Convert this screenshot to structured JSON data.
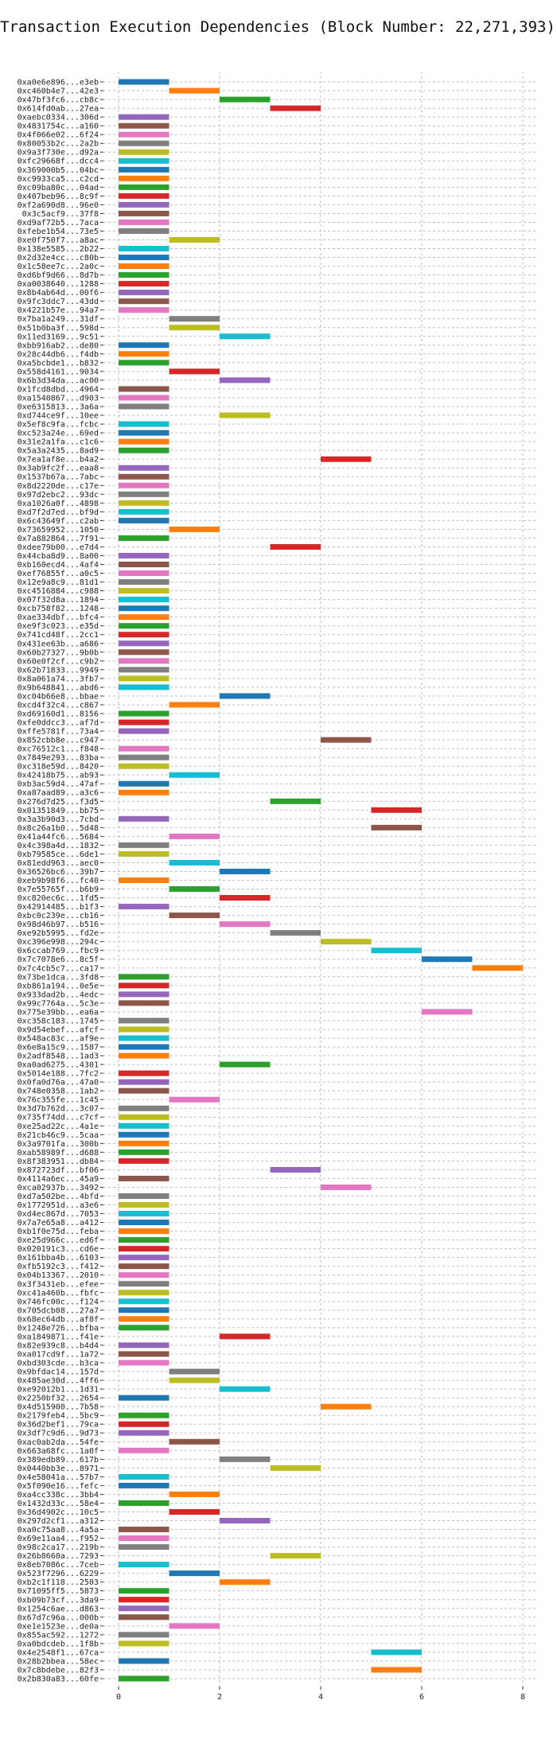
{
  "chart_data": {
    "type": "bar",
    "subtype": "horizontal-gantt",
    "title": "Transaction Execution Dependencies (Block Number: 22,271,393)",
    "xlabel": "",
    "ylabel": "",
    "xlim": [
      -0.3,
      8.3
    ],
    "xticks": [
      0,
      2,
      4,
      6,
      8
    ],
    "grid": true,
    "palette": [
      "#1f77b4",
      "#ff7f0e",
      "#2ca02c",
      "#d62728",
      "#9467bd",
      "#8c564b",
      "#e377c2",
      "#7f7f7f",
      "#bcbd22",
      "#17becf"
    ],
    "rows": [
      {
        "label": "0xa0e6e896...e3eb",
        "start": 0
      },
      {
        "label": "0xc460b4e7...42e3",
        "start": 1
      },
      {
        "label": "0x47bf3fc6...cb8c",
        "start": 2
      },
      {
        "label": "0x614fd0ab...27ea",
        "start": 3
      },
      {
        "label": "0xaebc0334...306d",
        "start": 0
      },
      {
        "label": "0x4831754c...a160",
        "start": 0
      },
      {
        "label": "0x4f066e02...6f24",
        "start": 0
      },
      {
        "label": "0x80053b2c...2a2b",
        "start": 0
      },
      {
        "label": "0x9a3f730e...d92a",
        "start": 0
      },
      {
        "label": "0xfc29668f...dcc4",
        "start": 0
      },
      {
        "label": "0x369000b5...04bc",
        "start": 0
      },
      {
        "label": "0xc9933ca5...c2cd",
        "start": 0
      },
      {
        "label": "0xc09ba80c...04ad",
        "start": 0
      },
      {
        "label": "0x407beb96...8c9f",
        "start": 0
      },
      {
        "label": "0xf2a690d8...96e0",
        "start": 0
      },
      {
        "label": "0x3c5acf9...37f8",
        "start": 0
      },
      {
        "label": "0xd9af72b5...7aca",
        "start": 0
      },
      {
        "label": "0xfebe1b54...73e5",
        "start": 0
      },
      {
        "label": "0xe0f750f7...a8ac",
        "start": 1
      },
      {
        "label": "0x138e5585...2b22",
        "start": 0
      },
      {
        "label": "0x2d32e4cc...c80b",
        "start": 0
      },
      {
        "label": "0x1c58ee7c...2a0c",
        "start": 0
      },
      {
        "label": "0xd6bf9d66...8d7b",
        "start": 0
      },
      {
        "label": "0xa0038640...1288",
        "start": 0
      },
      {
        "label": "0x8b4ab64d...00f6",
        "start": 0
      },
      {
        "label": "0x9fc3ddc7...43dd",
        "start": 0
      },
      {
        "label": "0x4221b57e...94a7",
        "start": 0
      },
      {
        "label": "0x7ba1a249...31df",
        "start": 1
      },
      {
        "label": "0x51b0ba3f...598d",
        "start": 1
      },
      {
        "label": "0x11ed3169...9c51",
        "start": 2
      },
      {
        "label": "0xbb916ab2...de80",
        "start": 0
      },
      {
        "label": "0x28c44db6...f4db",
        "start": 0
      },
      {
        "label": "0xa5bcbde1...b832",
        "start": 0
      },
      {
        "label": "0x558d4161...9034",
        "start": 1
      },
      {
        "label": "0x6b3d34da...ac00",
        "start": 2
      },
      {
        "label": "0x1fcd8dbd...4964",
        "start": 0
      },
      {
        "label": "0xa1540867...d903",
        "start": 0
      },
      {
        "label": "0xe6315813...3a6a",
        "start": 0
      },
      {
        "label": "0xd744ce9f...10ee",
        "start": 2
      },
      {
        "label": "0x5ef8c9fa...fcbc",
        "start": 0
      },
      {
        "label": "0xc523a24e...69ed",
        "start": 0
      },
      {
        "label": "0x31e2a1fa...c1c6",
        "start": 0
      },
      {
        "label": "0x5a3a2435...8ad9",
        "start": 0
      },
      {
        "label": "0x7ea1af8e...b4a2",
        "start": 4
      },
      {
        "label": "0x3ab9fc2f...eaa8",
        "start": 0
      },
      {
        "label": "0x1537b67a...7abc",
        "start": 0
      },
      {
        "label": "0x8d2220de...c17e",
        "start": 0
      },
      {
        "label": "0x97d2ebc2...93dc",
        "start": 0
      },
      {
        "label": "0xa1026a0f...4898",
        "start": 0
      },
      {
        "label": "0xd7f2d7ed...bf9d",
        "start": 0
      },
      {
        "label": "0x6c43649f...c2ab",
        "start": 0
      },
      {
        "label": "0x73659952...1050",
        "start": 1
      },
      {
        "label": "0x7a882864...7f91",
        "start": 0
      },
      {
        "label": "0xdee79b00...e7d4",
        "start": 3
      },
      {
        "label": "0x44cba8d9...8a00",
        "start": 0
      },
      {
        "label": "0xb160ecd4...4af4",
        "start": 0
      },
      {
        "label": "0xef76855f...a0c5",
        "start": 0
      },
      {
        "label": "0x12e9a8c9...81d1",
        "start": 0
      },
      {
        "label": "0xc4516884...c988",
        "start": 0
      },
      {
        "label": "0x07f32d8a...1894",
        "start": 0
      },
      {
        "label": "0xcb758f82...1248",
        "start": 0
      },
      {
        "label": "0xae334dbf...bfc4",
        "start": 0
      },
      {
        "label": "0xe9f3c023...e35d",
        "start": 0
      },
      {
        "label": "0x741cd48f...2cc1",
        "start": 0
      },
      {
        "label": "0x431ee63b...a686",
        "start": 0
      },
      {
        "label": "0x60b27327...9b0b",
        "start": 0
      },
      {
        "label": "0x60e0f2cf...c9b2",
        "start": 0
      },
      {
        "label": "0x62b71833...9949",
        "start": 0
      },
      {
        "label": "0x8a061a74...3fb7",
        "start": 0
      },
      {
        "label": "0x9b648841...abd6",
        "start": 0
      },
      {
        "label": "0xc04b66e8...bbae",
        "start": 2
      },
      {
        "label": "0xcd4f32c4...c867",
        "start": 1
      },
      {
        "label": "0xd69160d1...8156",
        "start": 0
      },
      {
        "label": "0xfe0ddcc3...af7d",
        "start": 0
      },
      {
        "label": "0xffe5781f...73a4",
        "start": 0
      },
      {
        "label": "0x852cbb8e...c947",
        "start": 4
      },
      {
        "label": "0xc76512c1...f848",
        "start": 0
      },
      {
        "label": "0x7849e293...83ba",
        "start": 0
      },
      {
        "label": "0xc318e59d...8420",
        "start": 0
      },
      {
        "label": "0x42418b75...ab93",
        "start": 1
      },
      {
        "label": "0xb3ac59d4...47af",
        "start": 0
      },
      {
        "label": "0xa87aad89...a3c6",
        "start": 0
      },
      {
        "label": "0x276d7d25...f3d5",
        "start": 3
      },
      {
        "label": "0x01351849...bb75",
        "start": 5
      },
      {
        "label": "0x3a3b90d3...7cbd",
        "start": 0
      },
      {
        "label": "0x8c26a1b0...5d48",
        "start": 5
      },
      {
        "label": "0x41a44fc6...5684",
        "start": 1
      },
      {
        "label": "0x4c398a4d...1832",
        "start": 0
      },
      {
        "label": "0xb79585ce...6de1",
        "start": 0
      },
      {
        "label": "0x81edd963...aec0",
        "start": 1
      },
      {
        "label": "0x36526bc6...39b7",
        "start": 2
      },
      {
        "label": "0xeb9b98f6...fc40",
        "start": 0
      },
      {
        "label": "0x7e55765f...b6b9",
        "start": 1
      },
      {
        "label": "0xc820ec6c...1fd5",
        "start": 2
      },
      {
        "label": "0x42914485...b1f3",
        "start": 0
      },
      {
        "label": "0xbc0c239e...cb16",
        "start": 1
      },
      {
        "label": "0x98d46b97...b516",
        "start": 2
      },
      {
        "label": "0xe92b5995...fd2e",
        "start": 3
      },
      {
        "label": "0xc396e998...294c",
        "start": 4
      },
      {
        "label": "0x6ccab769...fbc9",
        "start": 5
      },
      {
        "label": "0x7c7078e6...8c5f",
        "start": 6
      },
      {
        "label": "0x7c4cb5c7...ca17",
        "start": 7
      },
      {
        "label": "0x73be1dca...3fd8",
        "start": 0
      },
      {
        "label": "0xb861a194...0e5e",
        "start": 0
      },
      {
        "label": "0x933dad2b...4edc",
        "start": 0
      },
      {
        "label": "0x99c7764a...5c3e",
        "start": 0
      },
      {
        "label": "0x775e39bb...ea6a",
        "start": 6
      },
      {
        "label": "0xc358c183...1745",
        "start": 0
      },
      {
        "label": "0x9d54ebef...afcf",
        "start": 0
      },
      {
        "label": "0x548ac83c...af9e",
        "start": 0
      },
      {
        "label": "0x6e8a15c9...1587",
        "start": 0
      },
      {
        "label": "0x2adf8548...1ad3",
        "start": 0
      },
      {
        "label": "0xa0ad6275...4301",
        "start": 2
      },
      {
        "label": "0x5014e188...7fc2",
        "start": 0
      },
      {
        "label": "0x0fa0d76a...47a0",
        "start": 0
      },
      {
        "label": "0x748e0358...1ab2",
        "start": 0
      },
      {
        "label": "0x76c355fe...1c45",
        "start": 1
      },
      {
        "label": "0x3d7b762d...3c07",
        "start": 0
      },
      {
        "label": "0x735f74dd...c7cf",
        "start": 0
      },
      {
        "label": "0xe25ad22c...4a1e",
        "start": 0
      },
      {
        "label": "0x21cb46c9...5caa",
        "start": 0
      },
      {
        "label": "0x3a9701fa...300b",
        "start": 0
      },
      {
        "label": "0xab58989f...d688",
        "start": 0
      },
      {
        "label": "0x8f383951...db84",
        "start": 0
      },
      {
        "label": "0x872723df...bf06",
        "start": 3
      },
      {
        "label": "0x4114a6ec...45a9",
        "start": 0
      },
      {
        "label": "0xca02937b...3492",
        "start": 4
      },
      {
        "label": "0xd7a502be...4bfd",
        "start": 0
      },
      {
        "label": "0x1772951d...a3e6",
        "start": 0
      },
      {
        "label": "0xd4ec867d...7053",
        "start": 0
      },
      {
        "label": "0x7a7e65a8...a412",
        "start": 0
      },
      {
        "label": "0xb1f0e75d...feba",
        "start": 0
      },
      {
        "label": "0xe25d966c...ed6f",
        "start": 0
      },
      {
        "label": "0x020191c3...cd6e",
        "start": 0
      },
      {
        "label": "0x161bba4b...6103",
        "start": 0
      },
      {
        "label": "0xfb5192c3...f412",
        "start": 0
      },
      {
        "label": "0x04b13367...2010",
        "start": 0
      },
      {
        "label": "0x3f3431eb...efee",
        "start": 0
      },
      {
        "label": "0xc41a460b...fbfc",
        "start": 0
      },
      {
        "label": "0x746fc00c...f124",
        "start": 0
      },
      {
        "label": "0x705dcb08...27a7",
        "start": 0
      },
      {
        "label": "0x68ec64db...af8f",
        "start": 0
      },
      {
        "label": "0x1248e726...bfba",
        "start": 0
      },
      {
        "label": "0xa1849871...f41e",
        "start": 2
      },
      {
        "label": "0x82e939c8...b4d4",
        "start": 0
      },
      {
        "label": "0xa017cd9f...1a72",
        "start": 0
      },
      {
        "label": "0xbd303cde...b3ca",
        "start": 0
      },
      {
        "label": "0x9bfdac14...157d",
        "start": 1
      },
      {
        "label": "0x485ae30d...4ff6",
        "start": 1
      },
      {
        "label": "0xe92012b1...1d31",
        "start": 2
      },
      {
        "label": "0x2250bf32...2654",
        "start": 0
      },
      {
        "label": "0x4d515900...7b58",
        "start": 4
      },
      {
        "label": "0x2179feb4...5bc9",
        "start": 0
      },
      {
        "label": "0x36d2bef1...79ca",
        "start": 0
      },
      {
        "label": "0x3df7c9d6...9d73",
        "start": 0
      },
      {
        "label": "0xac0ab2da...54fe",
        "start": 1
      },
      {
        "label": "0x663a68fc...1a0f",
        "start": 0
      },
      {
        "label": "0x389edb89...617b",
        "start": 2
      },
      {
        "label": "0x0440bb3e...8971",
        "start": 3
      },
      {
        "label": "0x4e58041a...57b7",
        "start": 0
      },
      {
        "label": "0x5f090e16...fefc",
        "start": 0
      },
      {
        "label": "0xa4cc338c...3bb4",
        "start": 1
      },
      {
        "label": "0x1432d33c...58e4",
        "start": 0
      },
      {
        "label": "0x36d4902c...10c5",
        "start": 1
      },
      {
        "label": "0x297d2cf1...a312",
        "start": 2
      },
      {
        "label": "0xa0c75aa8...4a5a",
        "start": 0
      },
      {
        "label": "0x69e11aa4...f952",
        "start": 0
      },
      {
        "label": "0x98c2ca17...219b",
        "start": 0
      },
      {
        "label": "0x26b8660a...7293",
        "start": 3
      },
      {
        "label": "0x8eb7086c...7ceb",
        "start": 0
      },
      {
        "label": "0x523f7296...6229",
        "start": 1
      },
      {
        "label": "0xb2c1f118...2503",
        "start": 2
      },
      {
        "label": "0x71095ff5...5873",
        "start": 0
      },
      {
        "label": "0xb09b73cf...3da9",
        "start": 0
      },
      {
        "label": "0x1254c6ae...d863",
        "start": 0
      },
      {
        "label": "0x67d7c96a...000b",
        "start": 0
      },
      {
        "label": "0xe1e1523e...de0a",
        "start": 1
      },
      {
        "label": "0x855ac592...1272",
        "start": 0
      },
      {
        "label": "0xa0bdcdeb...1f8b",
        "start": 0
      },
      {
        "label": "0x4e2548f1...67ca",
        "start": 5
      },
      {
        "label": "0x28b2bbea...58ec",
        "start": 0
      },
      {
        "label": "0x7c8bdebe...82f3",
        "start": 5
      },
      {
        "label": "0x2b830a83...60fe",
        "start": 0
      }
    ]
  }
}
